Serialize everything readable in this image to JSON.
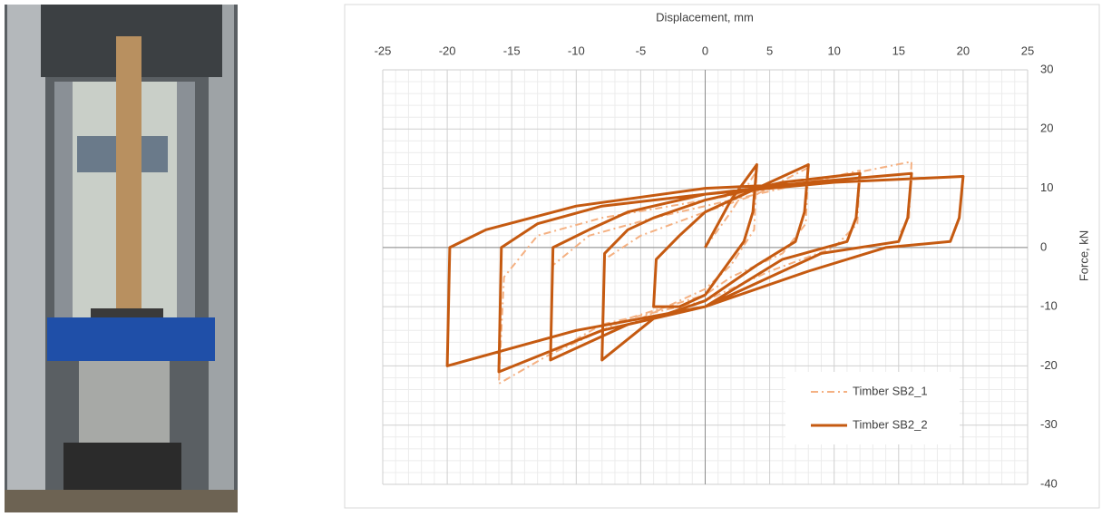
{
  "chart_data": {
    "type": "line",
    "xlabel": "Displacement, mm",
    "ylabel": "Force, kN",
    "xlim": [
      -25,
      25
    ],
    "xticks": [
      -25,
      -20,
      -15,
      -10,
      -5,
      0,
      5,
      10,
      15,
      20,
      25
    ],
    "ylim": [
      -40,
      30
    ],
    "yticks": [
      -40,
      -30,
      -20,
      -10,
      0,
      10,
      20,
      30
    ],
    "grid": true,
    "legend": "lower right",
    "series": [
      {
        "name": "Timber SB2_1",
        "color": "#f4b183",
        "dashed": true,
        "x": [
          0,
          2,
          4,
          3.8,
          2,
          0,
          -4,
          -8,
          -7.8,
          -5,
          0,
          4,
          8,
          7.8,
          6,
          2,
          0,
          -6,
          -12,
          -11.8,
          -9,
          -4,
          0,
          6,
          12,
          11.8,
          10,
          5,
          0,
          -8,
          -16,
          -15.6,
          -13,
          -8,
          0,
          8,
          16,
          15.8,
          15
        ],
        "values": [
          0,
          6,
          13,
          3,
          -3,
          -7,
          -11,
          -15,
          -2,
          2,
          6,
          9,
          13.5,
          4,
          -1,
          -5,
          -8,
          -12,
          -18,
          -3,
          2,
          5,
          7,
          10,
          13,
          4,
          0,
          -4,
          -9,
          -13,
          -23,
          -5,
          2,
          5,
          8,
          11,
          14.5,
          5,
          2
        ]
      },
      {
        "name": "Timber SB2_2",
        "color": "#c55a11",
        "dashed": false,
        "x": [
          0,
          2,
          4,
          3.7,
          3,
          2,
          0,
          -2,
          -4,
          -3.8,
          -2,
          0,
          4,
          8,
          7.7,
          7,
          4,
          0,
          -4,
          -8,
          -7.8,
          -6,
          -4,
          0,
          6,
          12,
          11.7,
          11,
          6,
          0,
          -6,
          -12,
          -11.8,
          -9,
          -6,
          0,
          8,
          16,
          15.7,
          15,
          9,
          3,
          0,
          -8,
          -16,
          -15.8,
          -13,
          -8,
          0,
          10,
          20,
          19.7,
          19,
          14,
          8,
          0,
          -10,
          -20,
          -19.8,
          -17,
          -10,
          0,
          10,
          20
        ],
        "values": [
          0,
          8,
          14,
          6,
          1,
          -2,
          -8,
          -10,
          -10,
          -2,
          2,
          6,
          10,
          14,
          6,
          1,
          -3,
          -9,
          -12,
          -19,
          -1,
          3,
          5,
          8,
          11,
          12.5,
          5,
          1,
          -2,
          -10,
          -13,
          -19,
          0,
          3,
          6,
          9,
          11,
          12.5,
          5,
          1,
          -1,
          -7,
          -10,
          -14,
          -21,
          0,
          4,
          7,
          9,
          11,
          12,
          5,
          1,
          0,
          -4,
          -10,
          -14,
          -20,
          0,
          3,
          7,
          10,
          11,
          12
        ]
      }
    ]
  }
}
